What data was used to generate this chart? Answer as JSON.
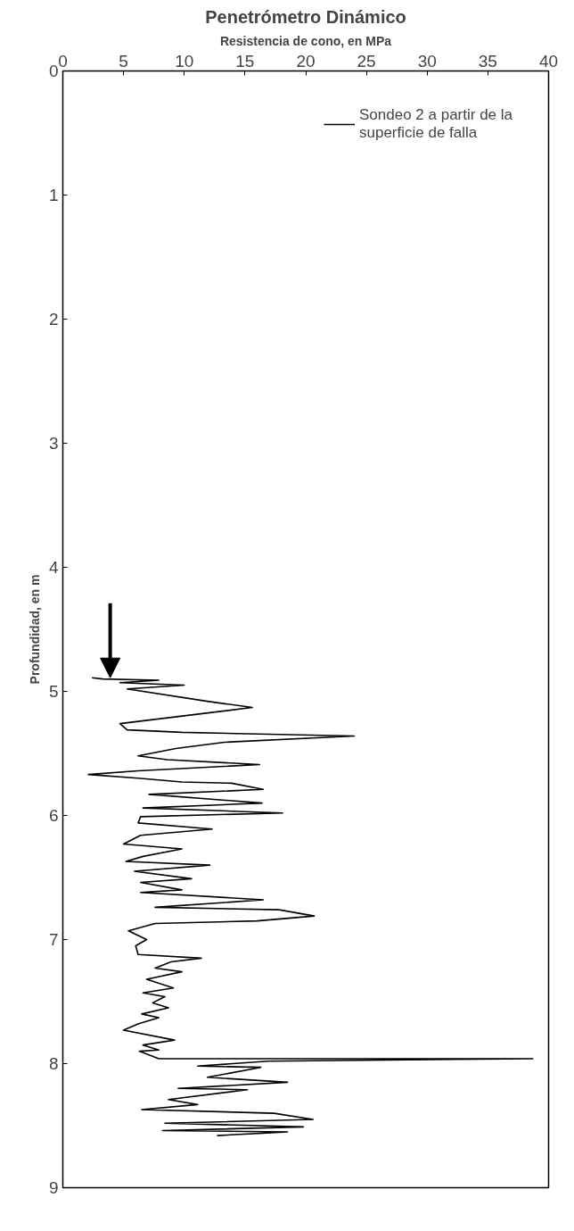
{
  "chart_data": {
    "type": "line",
    "title": "Penetrómetro Dinámico",
    "xlabel": "Resistencia de cono, en MPa",
    "ylabel": "Profundidad, en m",
    "xlim": [
      0,
      40
    ],
    "xticks": [
      0,
      5,
      10,
      15,
      20,
      25,
      30,
      35,
      40
    ],
    "ylim": [
      9,
      0
    ],
    "yticks": [
      0,
      1,
      2,
      3,
      4,
      5,
      6,
      7,
      8,
      9
    ],
    "grid": false,
    "legend": "top right",
    "marker": "none",
    "line_style": "solid",
    "series": [
      {
        "name": "Sondeo 2 a partir de la superficie de falla",
        "color": "#000000",
        "x": [
          2.4,
          3.3,
          7.9,
          4.7,
          10.0,
          5.3,
          11.9,
          15.6,
          4.7,
          5.3,
          9.8,
          24.0,
          13.3,
          9.3,
          6.2,
          8.6,
          16.2,
          6.2,
          2.1,
          6.2,
          9.8,
          13.9,
          16.5,
          7.1,
          16.4,
          6.6,
          18.1,
          6.4,
          6.2,
          12.3,
          6.4,
          5.0,
          9.8,
          6.6,
          5.2,
          12.1,
          5.9,
          10.6,
          6.4,
          9.8,
          6.4,
          16.5,
          7.6,
          17.8,
          20.7,
          16.0,
          7.6,
          5.4,
          6.9,
          6.0,
          6.2,
          11.4,
          8.9,
          7.6,
          9.8,
          6.9,
          9.1,
          6.6,
          8.4,
          7.4,
          8.7,
          6.5,
          7.9,
          6.2,
          5.0,
          9.2,
          6.6,
          7.9,
          6.3,
          7.9,
          38.7,
          16.9,
          11.1,
          16.3,
          11.9,
          18.5,
          9.5,
          15.2,
          8.7,
          11.1,
          6.5,
          17.4,
          20.6,
          8.4,
          19.8,
          8.2,
          18.5,
          12.7
        ],
        "values": [
          4.89,
          4.9,
          4.91,
          4.93,
          4.95,
          4.98,
          5.08,
          5.13,
          5.26,
          5.31,
          5.33,
          5.36,
          5.41,
          5.46,
          5.52,
          5.55,
          5.59,
          5.64,
          5.67,
          5.7,
          5.73,
          5.74,
          5.79,
          5.83,
          5.9,
          5.94,
          5.98,
          6.01,
          6.06,
          6.11,
          6.16,
          6.23,
          6.27,
          6.33,
          6.37,
          6.4,
          6.45,
          6.51,
          6.54,
          6.6,
          6.62,
          6.68,
          6.74,
          6.76,
          6.81,
          6.85,
          6.87,
          6.93,
          7.0,
          7.05,
          7.12,
          7.15,
          7.18,
          7.23,
          7.26,
          7.32,
          7.39,
          7.43,
          7.46,
          7.51,
          7.55,
          7.6,
          7.63,
          7.68,
          7.73,
          7.81,
          7.85,
          7.89,
          7.9,
          7.96,
          7.96,
          7.98,
          8.02,
          8.03,
          8.11,
          8.15,
          8.2,
          8.21,
          8.29,
          8.33,
          8.37,
          8.4,
          8.45,
          8.48,
          8.51,
          8.54,
          8.55,
          8.58
        ]
      }
    ]
  }
}
